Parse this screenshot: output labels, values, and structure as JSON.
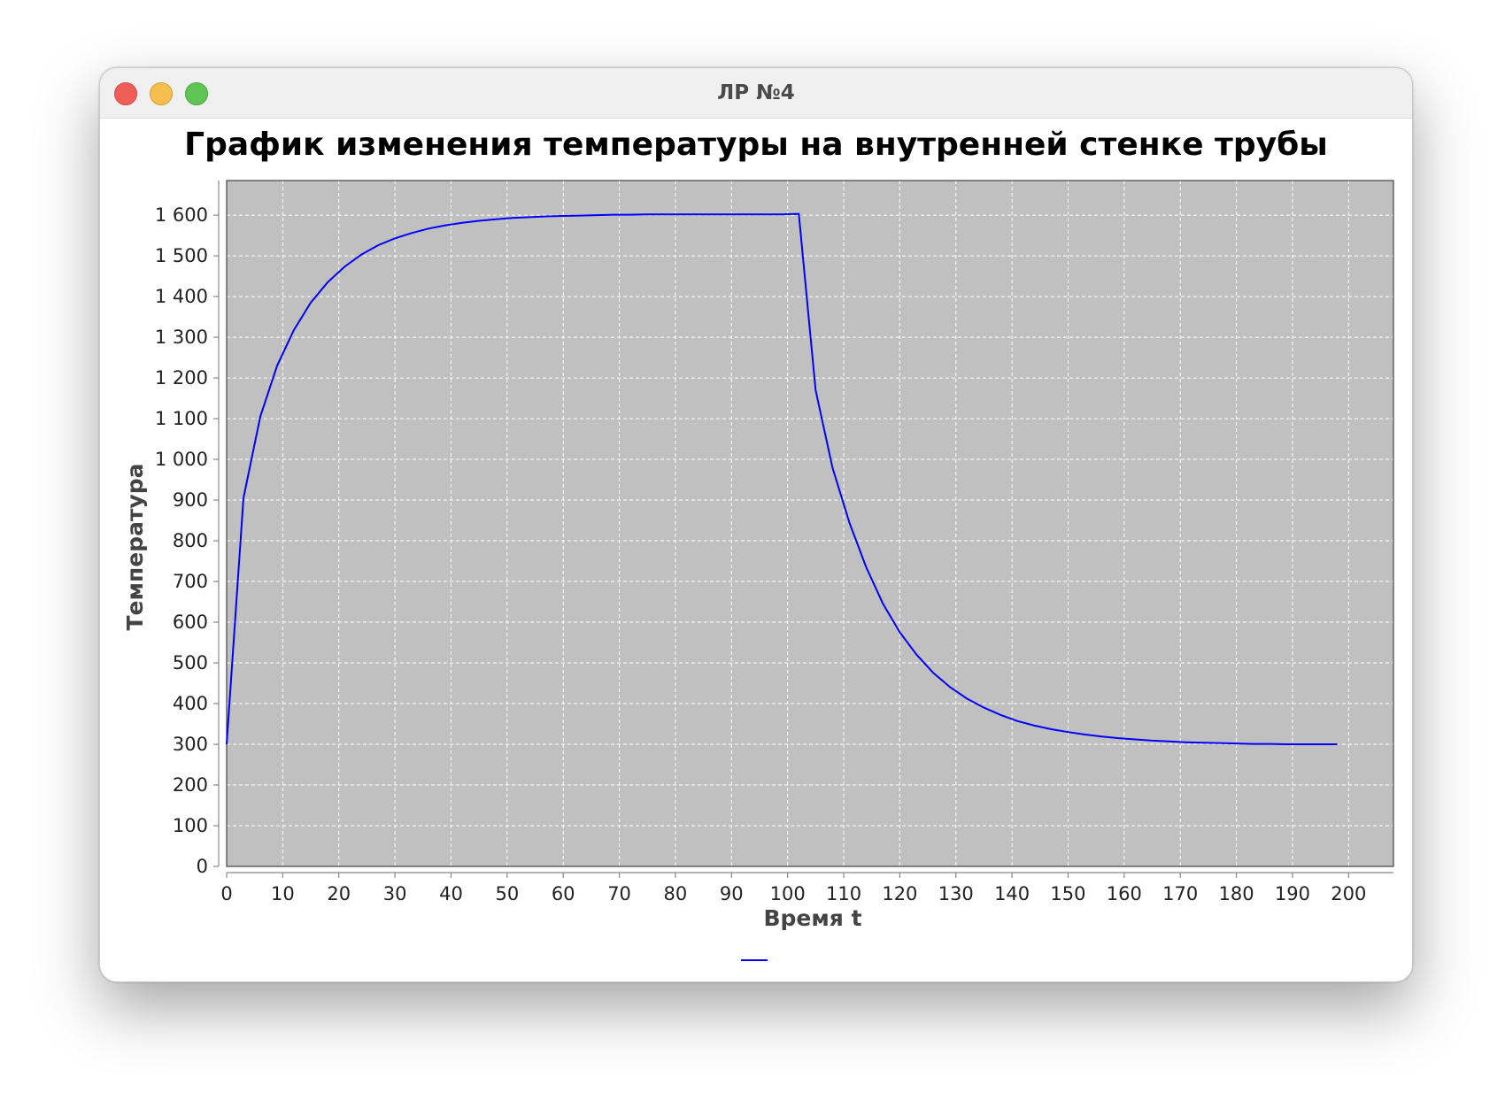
{
  "window": {
    "title": "ЛР №4"
  },
  "chart_data": {
    "type": "line",
    "title": "График изменения температуры на внутренней стенке трубы",
    "xlabel": "Время t",
    "ylabel": "Температура",
    "xlim": [
      0,
      208
    ],
    "ylim": [
      0,
      1685
    ],
    "xticks": [
      0,
      10,
      20,
      30,
      40,
      50,
      60,
      70,
      80,
      90,
      100,
      110,
      120,
      130,
      140,
      150,
      160,
      170,
      180,
      190,
      200
    ],
    "yticks": [
      0,
      100,
      200,
      300,
      400,
      500,
      600,
      700,
      800,
      900,
      1000,
      1100,
      1200,
      1300,
      1400,
      1500,
      1600
    ],
    "ytick_labels": [
      "0",
      "100",
      "200",
      "300",
      "400",
      "500",
      "600",
      "700",
      "800",
      "900",
      "1 000",
      "1 100",
      "1 200",
      "1 300",
      "1 400",
      "1 500",
      "1 600"
    ],
    "grid": true,
    "legend": "bottom-center",
    "series": [
      {
        "color": "#0000ff",
        "x": [
          0,
          3,
          6,
          9,
          12,
          15,
          18,
          21,
          24,
          27,
          30,
          33,
          36,
          39,
          42,
          45,
          48,
          51,
          54,
          57,
          60,
          63,
          66,
          69,
          72,
          75,
          78,
          81,
          84,
          87,
          90,
          93,
          96,
          99,
          102,
          105,
          108,
          111,
          114,
          117,
          120,
          123,
          126,
          129,
          132,
          135,
          138,
          141,
          144,
          147,
          150,
          153,
          156,
          159,
          162,
          165,
          168,
          171,
          174,
          177,
          180,
          183,
          186,
          189,
          192,
          195,
          198
        ],
        "y": [
          300,
          905,
          1105,
          1230,
          1318,
          1385,
          1435,
          1473,
          1503,
          1526,
          1543,
          1556,
          1567,
          1575,
          1581,
          1586,
          1590,
          1593,
          1595,
          1597,
          1598,
          1599,
          1600,
          1601,
          1601,
          1602,
          1602,
          1602,
          1602,
          1602,
          1602,
          1602,
          1602,
          1602,
          1603,
          1170,
          980,
          845,
          735,
          645,
          575,
          520,
          475,
          440,
          412,
          390,
          372,
          357,
          346,
          337,
          330,
          324,
          319,
          315,
          312,
          309,
          307,
          305,
          304,
          303,
          302,
          301,
          301,
          300,
          300,
          300,
          300
        ]
      }
    ]
  }
}
